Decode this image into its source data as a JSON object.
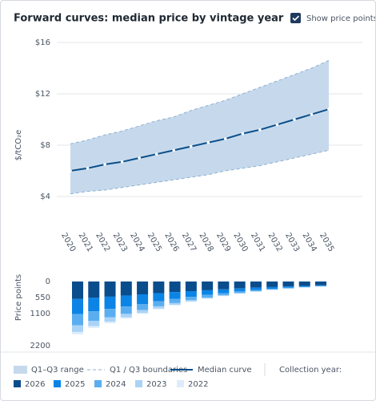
{
  "header": {
    "title": "Forward curves: median price by vintage year",
    "checkbox_label": "Show price points",
    "checkbox_checked": true
  },
  "chart_data": [
    {
      "type": "line",
      "y_label": "$/tCO₂e",
      "categories": [
        "2020",
        "2021",
        "2022",
        "2023",
        "2024",
        "2025",
        "2026",
        "2027",
        "2028",
        "2029",
        "2030",
        "2031",
        "2032",
        "2033",
        "2034",
        "2035"
      ],
      "series": [
        {
          "name": "Median curve",
          "color": "#0b4f8a",
          "values": [
            6.0,
            6.2,
            6.5,
            6.7,
            7.0,
            7.3,
            7.6,
            7.9,
            8.2,
            8.5,
            8.9,
            9.2,
            9.6,
            10.0,
            10.4,
            10.8
          ]
        }
      ],
      "band": {
        "name": "Q1–Q3 range",
        "color": "#c6d9ec",
        "boundary_name": "Q1 / Q3 boundaries",
        "boundary_color": "#8fb0cf",
        "lower": [
          4.2,
          4.4,
          4.5,
          4.7,
          4.9,
          5.1,
          5.3,
          5.5,
          5.7,
          6.0,
          6.2,
          6.4,
          6.7,
          7.0,
          7.3,
          7.6
        ],
        "upper": [
          8.1,
          8.4,
          8.8,
          9.1,
          9.5,
          9.9,
          10.2,
          10.7,
          11.1,
          11.5,
          12.0,
          12.5,
          13.0,
          13.5,
          14.0,
          14.6
        ]
      },
      "ylim": [
        1,
        16
      ],
      "yticks": [
        {
          "value": 4,
          "label": "$4"
        },
        {
          "value": 8,
          "label": "$8"
        },
        {
          "value": 12,
          "label": "$12"
        },
        {
          "value": 16,
          "label": "$16"
        }
      ],
      "grid": true
    },
    {
      "type": "bar",
      "stacked": true,
      "inverted": true,
      "y_label": "Price points",
      "legend_title": "Collection year:",
      "ylim": [
        0,
        2200
      ],
      "yticks": [
        0,
        550,
        1100,
        2200
      ],
      "series": [
        {
          "name": "2026",
          "color": "#0a4d8c",
          "values": [
            600,
            560,
            520,
            480,
            440,
            400,
            360,
            330,
            300,
            270,
            240,
            210,
            190,
            170,
            150,
            130
          ]
        },
        {
          "name": "2025",
          "color": "#0b84e6",
          "values": [
            520,
            460,
            420,
            380,
            330,
            280,
            240,
            200,
            160,
            130,
            100,
            80,
            60,
            45,
            35,
            25
          ]
        },
        {
          "name": "2024",
          "color": "#5aaef0",
          "values": [
            380,
            330,
            290,
            250,
            210,
            170,
            140,
            110,
            90,
            70,
            55,
            40,
            30,
            20,
            15,
            10
          ]
        },
        {
          "name": "2023",
          "color": "#a9d3f7",
          "values": [
            230,
            180,
            150,
            120,
            100,
            80,
            60,
            45,
            35,
            25,
            20,
            15,
            10,
            8,
            5,
            4
          ]
        },
        {
          "name": "2022",
          "color": "#dcecfa",
          "values": [
            80,
            60,
            50,
            40,
            30,
            25,
            20,
            15,
            10,
            10,
            5,
            5,
            5,
            3,
            2,
            2
          ]
        }
      ]
    }
  ]
}
